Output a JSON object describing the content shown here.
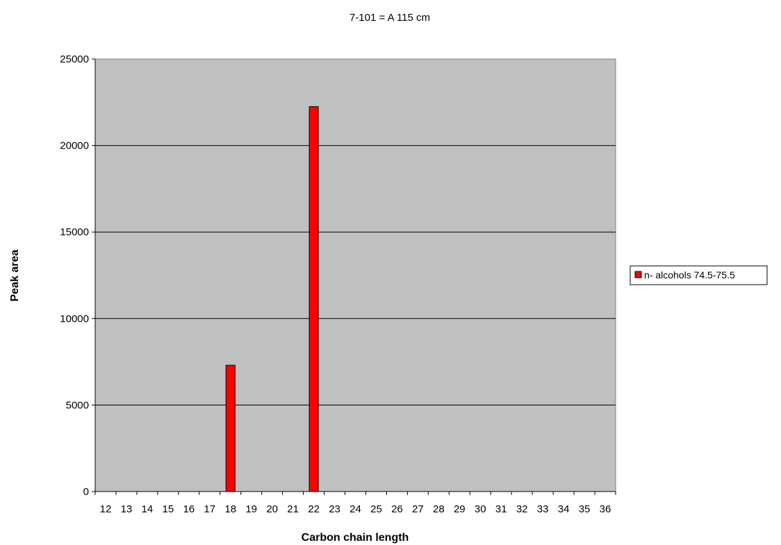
{
  "chart_data": {
    "type": "bar",
    "title": "7-101 = A 115 cm",
    "xlabel": "Carbon chain length",
    "ylabel": "Peak area",
    "ylim": [
      0,
      25000
    ],
    "yticks": [
      0,
      5000,
      10000,
      15000,
      20000,
      25000
    ],
    "grid": true,
    "legend_position": "right",
    "categories": [
      "12",
      "13",
      "14",
      "15",
      "16",
      "17",
      "18",
      "19",
      "20",
      "21",
      "22",
      "23",
      "24",
      "25",
      "26",
      "27",
      "28",
      "29",
      "30",
      "31",
      "32",
      "33",
      "34",
      "35",
      "36"
    ],
    "series": [
      {
        "name": "n- alcohols 74.5-75.5",
        "color": "#ff0000",
        "values": [
          0,
          0,
          0,
          0,
          0,
          0,
          7300,
          0,
          0,
          0,
          22250,
          0,
          0,
          0,
          0,
          0,
          0,
          0,
          0,
          0,
          0,
          0,
          0,
          0,
          0
        ]
      }
    ]
  },
  "colors": {
    "plot_background": "#c0c0c0",
    "gridline": "#000000",
    "bar_fill": "#ff0000"
  }
}
